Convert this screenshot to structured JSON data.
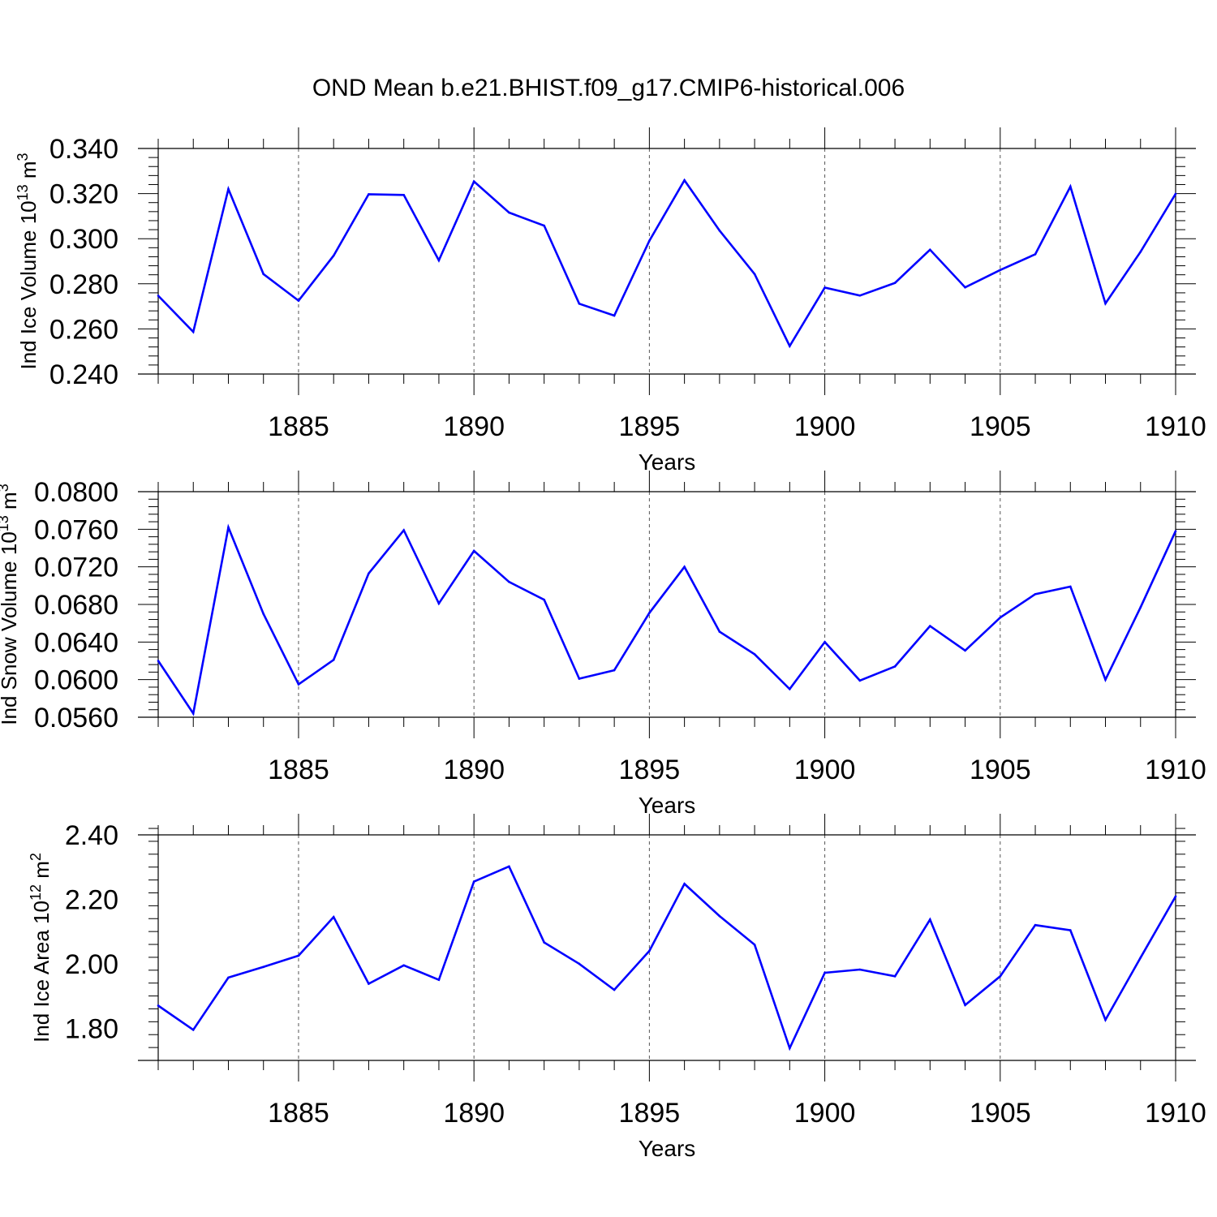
{
  "title": "OND Mean b.e21.BHIST.f09_g17.CMIP6-historical.006",
  "colors": {
    "line": "#0000ff",
    "axis": "#000000",
    "grid": "#555555"
  },
  "chart_data": [
    {
      "type": "line",
      "ylabel": {
        "text": "Ind Ice Volume 10",
        "sup": "13",
        "unit": " m",
        "unit_sup": "3"
      },
      "xlabel": "Years",
      "xlim": [
        1881,
        1910
      ],
      "ylim": [
        0.24,
        0.34
      ],
      "yticks": [
        0.24,
        0.26,
        0.28,
        0.3,
        0.32,
        0.34
      ],
      "ytick_labels": [
        "0.240",
        "0.260",
        "0.280",
        "0.300",
        "0.320",
        "0.340"
      ],
      "xticks": [
        1885,
        1890,
        1895,
        1900,
        1905,
        1910
      ],
      "xtick_labels": [
        "1885",
        "1890",
        "1895",
        "1900",
        "1905",
        "1910"
      ],
      "x": [
        1881,
        1882,
        1883,
        1884,
        1885,
        1886,
        1887,
        1888,
        1889,
        1890,
        1891,
        1892,
        1893,
        1894,
        1895,
        1896,
        1897,
        1898,
        1899,
        1900,
        1901,
        1902,
        1903,
        1904,
        1905,
        1906,
        1907,
        1908,
        1909,
        1910
      ],
      "values": [
        0.2747,
        0.2587,
        0.322,
        0.2843,
        0.2725,
        0.2925,
        0.3197,
        0.3194,
        0.2904,
        0.3254,
        0.3116,
        0.3058,
        0.2712,
        0.2659,
        0.2991,
        0.3259,
        0.3036,
        0.2843,
        0.2524,
        0.2783,
        0.2748,
        0.2804,
        0.2951,
        0.2784,
        0.2861,
        0.2931,
        0.3231,
        0.2713,
        0.2942,
        0.3199
      ]
    },
    {
      "type": "line",
      "ylabel": {
        "text": "Ind Snow Volume 10",
        "sup": "13",
        "unit": " m",
        "unit_sup": "3"
      },
      "xlabel": "Years",
      "xlim": [
        1881,
        1910
      ],
      "ylim": [
        0.056,
        0.08
      ],
      "yticks": [
        0.056,
        0.06,
        0.064,
        0.068,
        0.072,
        0.076,
        0.08
      ],
      "ytick_labels": [
        "0.0560",
        "0.0600",
        "0.0640",
        "0.0680",
        "0.0720",
        "0.0760",
        "0.0800"
      ],
      "xticks": [
        1885,
        1890,
        1895,
        1900,
        1905,
        1910
      ],
      "xtick_labels": [
        "1885",
        "1890",
        "1895",
        "1900",
        "1905",
        "1910"
      ],
      "x": [
        1881,
        1882,
        1883,
        1884,
        1885,
        1886,
        1887,
        1888,
        1889,
        1890,
        1891,
        1892,
        1893,
        1894,
        1895,
        1896,
        1897,
        1898,
        1899,
        1900,
        1901,
        1902,
        1903,
        1904,
        1905,
        1906,
        1907,
        1908,
        1909,
        1910
      ],
      "values": [
        0.062,
        0.0564,
        0.0762,
        0.067,
        0.0595,
        0.0621,
        0.0713,
        0.0759,
        0.0681,
        0.0737,
        0.0704,
        0.0685,
        0.0601,
        0.061,
        0.0671,
        0.072,
        0.0651,
        0.0627,
        0.059,
        0.064,
        0.0599,
        0.0614,
        0.0657,
        0.0631,
        0.0666,
        0.0691,
        0.0699,
        0.06,
        0.0677,
        0.0758
      ]
    },
    {
      "type": "line",
      "ylabel": {
        "text": "Ind Ice Area 10",
        "sup": "12",
        "unit": " m",
        "unit_sup": "2"
      },
      "xlabel": "Years",
      "xlim": [
        1881,
        1910
      ],
      "ylim": [
        1.7,
        2.4
      ],
      "yticks": [
        1.8,
        2.0,
        2.2,
        2.4
      ],
      "ytick_labels": [
        "1.80",
        "2.00",
        "2.20",
        "2.40"
      ],
      "xticks": [
        1885,
        1890,
        1895,
        1900,
        1905,
        1910
      ],
      "xtick_labels": [
        "1885",
        "1890",
        "1895",
        "1900",
        "1905",
        "1910"
      ],
      "x": [
        1881,
        1882,
        1883,
        1884,
        1885,
        1886,
        1887,
        1888,
        1889,
        1890,
        1891,
        1892,
        1893,
        1894,
        1895,
        1896,
        1897,
        1898,
        1899,
        1900,
        1901,
        1902,
        1903,
        1904,
        1905,
        1906,
        1907,
        1908,
        1909,
        1910
      ],
      "values": [
        1.87,
        1.795,
        1.957,
        1.99,
        2.025,
        2.145,
        1.938,
        1.995,
        1.95,
        2.255,
        2.302,
        2.066,
        2.0,
        1.919,
        2.04,
        2.248,
        2.148,
        2.059,
        1.738,
        1.972,
        1.982,
        1.961,
        2.137,
        1.872,
        1.961,
        2.12,
        2.104,
        1.826,
        2.019,
        2.209
      ]
    }
  ]
}
